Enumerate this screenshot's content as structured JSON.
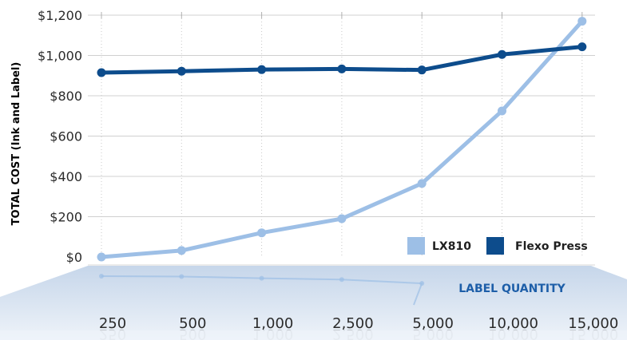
{
  "chart_data": {
    "type": "line",
    "ylabel": "TOTAL COST (Ink and Label)",
    "xlabel": "LABEL QUANTITY",
    "categories": [
      "250",
      "500",
      "1,000",
      "2,500",
      "5,000",
      "10,000",
      "15,000"
    ],
    "y_ticks": [
      "$0",
      "$200",
      "$400",
      "$600",
      "$800",
      "$1,000",
      "$1,200"
    ],
    "ylim": [
      0,
      1200
    ],
    "grid": "horizontal lines, dotted vertical lines",
    "legend_position": "bottom-right",
    "series": [
      {
        "name": "LX810",
        "values": [
          0,
          32,
          120,
          190,
          365,
          725,
          1170
        ],
        "color": "#9dbfe6"
      },
      {
        "name": "Flexo Press",
        "values": [
          915,
          922,
          930,
          933,
          928,
          1005,
          1043
        ],
        "color": "#0d4c8c"
      }
    ]
  },
  "colors": {
    "accent": "#1d5ea8",
    "floor_top": "#e8eef6",
    "floor_bottom": "#dde6f1"
  }
}
